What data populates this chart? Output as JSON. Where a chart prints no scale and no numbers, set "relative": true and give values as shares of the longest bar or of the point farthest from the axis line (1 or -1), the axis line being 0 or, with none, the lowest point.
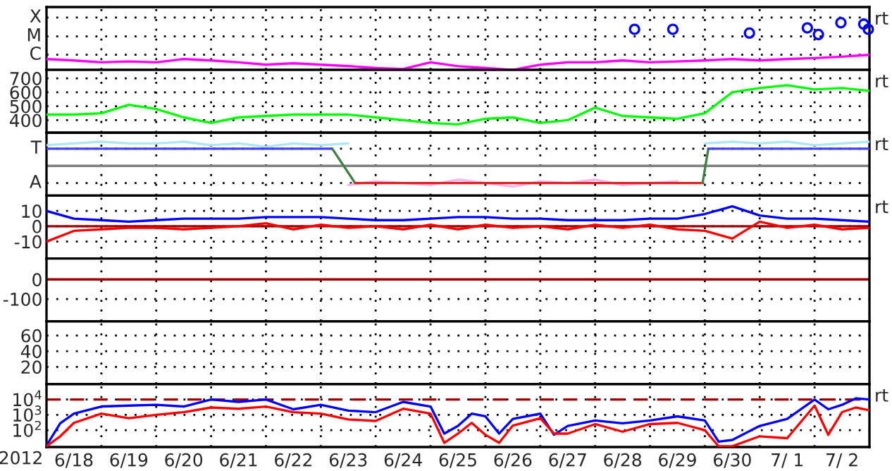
{
  "chart_data": [
    {
      "type": "line",
      "relative": true,
      "grid": "x",
      "tick_labels": false,
      "xlim": [
        "2012-06-18T00:00",
        "2012-07-03T00:00"
      ],
      "xticks": [
        {
          "value": "2012-06-19T00:00",
          "label": null
        },
        {
          "value": "2012-06-20T00:00",
          "label": null
        },
        {
          "value": "2012-06-21T00:00",
          "label": null
        },
        {
          "value": "2012-06-22T00:00",
          "label": null
        },
        {
          "value": "2012-06-23T00:00",
          "label": null
        },
        {
          "value": "2012-06-24T00:00",
          "label": null
        },
        {
          "value": "2012-06-25T00:00",
          "label": null
        },
        {
          "value": "2012-06-26T00:00",
          "label": null
        },
        {
          "value": "2012-06-27T00:00",
          "label": null
        },
        {
          "value": "2012-06-28T00:00",
          "label": null
        },
        {
          "value": "2012-06-29T00:00",
          "label": null
        },
        {
          "value": "2012-06-30T00:00",
          "label": null
        },
        {
          "value": "2012-07-01T00:00",
          "label": null
        },
        {
          "value": "2012-07-02T00:00",
          "label": null
        }
      ],
      "ref_lines": [
        {
          "axis": "y",
          "value": 1.11,
          "label": "X",
          "color": "#000000",
          "line_style": "dotted"
        },
        {
          "axis": "y",
          "value": 0.71,
          "label": "M",
          "color": "#000000",
          "line_style": "dotted"
        },
        {
          "axis": "y",
          "value": 0.32,
          "label": "C",
          "color": "#000000",
          "line_style": "dotted"
        }
      ],
      "annotations": [
        "rt"
      ],
      "x": [
        "2012-06-18T00:00",
        "2012-06-18T12:00",
        "2012-06-19T00:00",
        "2012-06-19T12:00",
        "2012-06-20T00:00",
        "2012-06-20T12:00",
        "2012-06-21T00:00",
        "2012-06-21T12:00",
        "2012-06-22T00:00",
        "2012-06-22T12:00",
        "2012-06-23T00:00",
        "2012-06-23T12:00",
        "2012-06-24T00:00",
        "2012-06-24T12:00",
        "2012-06-25T00:00",
        "2012-06-25T12:00",
        "2012-06-26T00:00",
        "2012-06-26T12:00",
        "2012-06-27T00:00",
        "2012-06-27T12:00",
        "2012-06-28T00:00",
        "2012-06-28T12:00",
        "2012-06-29T00:00",
        "2012-06-29T12:00",
        "2012-06-30T00:00",
        "2012-06-30T12:00",
        "2012-07-01T00:00",
        "2012-07-01T12:00",
        "2012-07-02T00:00",
        "2012-07-02T12:00",
        "2012-07-03T00:00"
      ],
      "series": [
        {
          "color": "#ff00ff",
          "values": [
            0.23,
            0.2,
            0.16,
            0.18,
            0.16,
            0.23,
            0.2,
            0.16,
            0.11,
            0.14,
            0.11,
            0.08,
            0.04,
            0.02,
            0.16,
            0.08,
            0.04,
            0,
            0.11,
            0.16,
            0.16,
            0.2,
            0.16,
            0.18,
            0.2,
            0.23,
            0.2,
            0.23,
            0.25,
            0.28,
            0.32
          ]
        },
        {
          "type": "scatter",
          "marker": "circle",
          "color": "#0000ff",
          "x": [
            "2012-06-28T17:15",
            "2012-06-29T10:00",
            "2012-06-30T19:30",
            "2012-07-01T20:50",
            "2012-07-02T01:40",
            "2012-07-02T11:30",
            "2012-07-02T21:30",
            "2012-07-02T23:30"
          ],
          "values": [
            0.86,
            0.86,
            0.78,
            0.89,
            0.75,
            1,
            0.97,
            0.86
          ]
        }
      ]
    },
    {
      "type": "line",
      "grid": true,
      "tick_labels": "y",
      "xlim": [
        "2012-06-18T00:00",
        "2012-07-03T00:00"
      ],
      "xticks": [
        {
          "value": "2012-06-19T00:00",
          "label": null
        },
        {
          "value": "2012-06-20T00:00",
          "label": null
        },
        {
          "value": "2012-06-21T00:00",
          "label": null
        },
        {
          "value": "2012-06-22T00:00",
          "label": null
        },
        {
          "value": "2012-06-23T00:00",
          "label": null
        },
        {
          "value": "2012-06-24T00:00",
          "label": null
        },
        {
          "value": "2012-06-25T00:00",
          "label": null
        },
        {
          "value": "2012-06-26T00:00",
          "label": null
        },
        {
          "value": "2012-06-27T00:00",
          "label": null
        },
        {
          "value": "2012-06-28T00:00",
          "label": null
        },
        {
          "value": "2012-06-29T00:00",
          "label": null
        },
        {
          "value": "2012-06-30T00:00",
          "label": null
        },
        {
          "value": "2012-07-01T00:00",
          "label": null
        },
        {
          "value": "2012-07-02T00:00",
          "label": null
        }
      ],
      "ylim": [
        310,
        760
      ],
      "yticks": [
        400,
        500,
        600,
        700
      ],
      "annotations": [
        "rt"
      ],
      "x": [
        "2012-06-18T00:00",
        "2012-06-18T12:00",
        "2012-06-19T00:00",
        "2012-06-19T12:00",
        "2012-06-20T00:00",
        "2012-06-20T12:00",
        "2012-06-21T00:00",
        "2012-06-21T12:00",
        "2012-06-22T00:00",
        "2012-06-22T12:00",
        "2012-06-23T00:00",
        "2012-06-23T12:00",
        "2012-06-24T00:00",
        "2012-06-24T12:00",
        "2012-06-25T00:00",
        "2012-06-25T12:00",
        "2012-06-26T00:00",
        "2012-06-26T12:00",
        "2012-06-27T00:00",
        "2012-06-27T12:00",
        "2012-06-28T00:00",
        "2012-06-28T12:00",
        "2012-06-29T00:00",
        "2012-06-29T12:00",
        "2012-06-30T00:00",
        "2012-06-30T12:00",
        "2012-07-01T00:00",
        "2012-07-01T12:00",
        "2012-07-02T00:00",
        "2012-07-02T12:00",
        "2012-07-03T00:00"
      ],
      "series": [
        {
          "color": "#00ff00",
          "values": [
            440,
            440,
            450,
            510,
            480,
            420,
            380,
            420,
            430,
            440,
            440,
            440,
            420,
            400,
            380,
            370,
            410,
            420,
            380,
            400,
            490,
            430,
            420,
            410,
            450,
            600,
            630,
            650,
            620,
            630,
            610
          ]
        }
      ]
    },
    {
      "type": "line",
      "relative": true,
      "grid": "x",
      "tick_labels": false,
      "xlim": [
        "2012-06-18T00:00",
        "2012-07-03T00:00"
      ],
      "xticks": [
        {
          "value": "2012-06-19T00:00",
          "label": null
        },
        {
          "value": "2012-06-20T00:00",
          "label": null
        },
        {
          "value": "2012-06-21T00:00",
          "label": null
        },
        {
          "value": "2012-06-22T00:00",
          "label": null
        },
        {
          "value": "2012-06-23T00:00",
          "label": null
        },
        {
          "value": "2012-06-24T00:00",
          "label": null
        },
        {
          "value": "2012-06-25T00:00",
          "label": null
        },
        {
          "value": "2012-06-26T00:00",
          "label": null
        },
        {
          "value": "2012-06-27T00:00",
          "label": null
        },
        {
          "value": "2012-06-28T00:00",
          "label": null
        },
        {
          "value": "2012-06-29T00:00",
          "label": null
        },
        {
          "value": "2012-06-30T00:00",
          "label": null
        },
        {
          "value": "2012-07-01T00:00",
          "label": null
        },
        {
          "value": "2012-07-02T00:00",
          "label": null
        }
      ],
      "ref_lines": [
        {
          "axis": "y",
          "value": 0,
          "color": "#808080"
        },
        {
          "axis": "y",
          "value": 0.71,
          "label": "T",
          "color": "#000000",
          "line_style": "dotted"
        },
        {
          "axis": "y",
          "value": -0.71,
          "label": "A",
          "color": "#000000",
          "line_style": "dotted"
        }
      ],
      "annotations": [
        "rt"
      ],
      "x": [
        "2012-06-18T00:00",
        "2012-06-18T12:00",
        "2012-06-19T00:00",
        "2012-06-19T12:00",
        "2012-06-20T00:00",
        "2012-06-20T12:00",
        "2012-06-21T00:00",
        "2012-06-21T12:00",
        "2012-06-22T00:00",
        "2012-06-22T12:00",
        "2012-06-23T00:00",
        "2012-06-23T12:00",
        "2012-06-24T00:00",
        "2012-06-24T12:00",
        "2012-06-25T00:00",
        "2012-06-25T12:00",
        "2012-06-26T00:00",
        "2012-06-26T12:00",
        "2012-06-27T00:00",
        "2012-06-27T12:00",
        "2012-06-28T00:00",
        "2012-06-28T12:00",
        "2012-06-29T00:00",
        "2012-06-29T12:00",
        "2012-06-30T00:00",
        "2012-06-30T12:00",
        "2012-07-01T00:00",
        "2012-07-01T12:00",
        "2012-07-02T00:00",
        "2012-07-02T12:00",
        "2012-07-03T00:00"
      ],
      "series": [
        {
          "color": "#aee6f5",
          "values": [
            0.86,
            0.93,
            1,
            0.93,
            0.93,
            1,
            0.86,
            0.93,
            0.79,
            0.93,
            0.86,
            0.93,
            null,
            null,
            null,
            null,
            null,
            null,
            null,
            null,
            null,
            null,
            null,
            null,
            0.93,
            1,
            0.93,
            1,
            0.86,
            0.93,
            1
          ]
        },
        {
          "color": "#f5b5ee",
          "values": [
            null,
            null,
            null,
            null,
            null,
            null,
            null,
            null,
            null,
            null,
            null,
            -0.79,
            -0.64,
            -0.71,
            -0.79,
            -0.57,
            -0.71,
            -0.86,
            -0.64,
            -0.71,
            -0.57,
            -0.79,
            -0.71,
            -0.64,
            null,
            null,
            null,
            null,
            null,
            null,
            null
          ]
        },
        {
          "color": "#4040ff",
          "x": [
            "2012-06-18T00:00",
            "2012-06-23T05:00"
          ],
          "values": [
            0.71,
            0.71
          ]
        },
        {
          "color": "#408040",
          "x": [
            "2012-06-23T05:00",
            "2012-06-23T15:00"
          ],
          "values": [
            0.71,
            -0.71
          ]
        },
        {
          "color": "#e02020",
          "x": [
            "2012-06-23T15:00",
            "2012-06-29T23:00"
          ],
          "values": [
            -0.71,
            -0.71
          ]
        },
        {
          "color": "#408040",
          "x": [
            "2012-06-29T23:00",
            "2012-06-30T01:30"
          ],
          "values": [
            -0.71,
            0.71
          ]
        },
        {
          "color": "#4040ff",
          "x": [
            "2012-06-30T01:30",
            "2012-07-03T00:00"
          ],
          "values": [
            0.71,
            0.71
          ]
        }
      ]
    },
    {
      "type": "line",
      "grid": true,
      "tick_labels": "y",
      "xlim": [
        "2012-06-18T00:00",
        "2012-07-03T00:00"
      ],
      "xticks": [
        {
          "value": "2012-06-19T00:00",
          "label": null
        },
        {
          "value": "2012-06-20T00:00",
          "label": null
        },
        {
          "value": "2012-06-21T00:00",
          "label": null
        },
        {
          "value": "2012-06-22T00:00",
          "label": null
        },
        {
          "value": "2012-06-23T00:00",
          "label": null
        },
        {
          "value": "2012-06-24T00:00",
          "label": null
        },
        {
          "value": "2012-06-25T00:00",
          "label": null
        },
        {
          "value": "2012-06-26T00:00",
          "label": null
        },
        {
          "value": "2012-06-27T00:00",
          "label": null
        },
        {
          "value": "2012-06-28T00:00",
          "label": null
        },
        {
          "value": "2012-06-29T00:00",
          "label": null
        },
        {
          "value": "2012-06-30T00:00",
          "label": null
        },
        {
          "value": "2012-07-01T00:00",
          "label": null
        },
        {
          "value": "2012-07-02T00:00",
          "label": null
        }
      ],
      "ylim": [
        -21,
        20
      ],
      "yticks": [
        {
          "value": -10,
          "label": "-10"
        },
        0,
        10
      ],
      "ref_lines": [
        {
          "axis": "y",
          "value": 0,
          "color": "#a00000"
        }
      ],
      "annotations": [
        "rt"
      ],
      "x": [
        "2012-06-18T00:00",
        "2012-06-18T12:00",
        "2012-06-19T00:00",
        "2012-06-19T12:00",
        "2012-06-20T00:00",
        "2012-06-20T12:00",
        "2012-06-21T00:00",
        "2012-06-21T12:00",
        "2012-06-22T00:00",
        "2012-06-22T12:00",
        "2012-06-23T00:00",
        "2012-06-23T12:00",
        "2012-06-24T00:00",
        "2012-06-24T12:00",
        "2012-06-25T00:00",
        "2012-06-25T12:00",
        "2012-06-26T00:00",
        "2012-06-26T12:00",
        "2012-06-27T00:00",
        "2012-06-27T12:00",
        "2012-06-28T00:00",
        "2012-06-28T12:00",
        "2012-06-29T00:00",
        "2012-06-29T12:00",
        "2012-06-30T00:00",
        "2012-06-30T12:00",
        "2012-07-01T00:00",
        "2012-07-01T12:00",
        "2012-07-02T00:00",
        "2012-07-02T12:00",
        "2012-07-03T00:00"
      ],
      "series": [
        {
          "color": "#0000ff",
          "values": [
            10,
            5,
            4,
            3,
            4,
            5,
            5,
            5,
            6,
            6,
            6,
            5,
            4,
            4,
            5,
            6,
            6,
            5,
            5,
            4,
            4,
            4,
            5,
            5,
            8,
            13,
            7,
            5,
            5,
            4,
            3
          ]
        },
        {
          "color": "#ff0000",
          "values": [
            -10,
            -3,
            -2,
            -1,
            -1,
            -2,
            -1,
            0,
            2,
            -2,
            1,
            -1,
            0,
            -2,
            1,
            -2,
            1,
            -1,
            0,
            -2,
            1,
            -1,
            1,
            -2,
            -3,
            -8,
            3,
            -1,
            1,
            -2,
            -1
          ]
        }
      ]
    },
    {
      "type": "line",
      "grid": true,
      "tick_labels": "y",
      "xlim": [
        "2012-06-18T00:00",
        "2012-07-03T00:00"
      ],
      "xticks": [
        {
          "value": "2012-06-19T00:00",
          "label": null
        },
        {
          "value": "2012-06-20T00:00",
          "label": null
        },
        {
          "value": "2012-06-21T00:00",
          "label": null
        },
        {
          "value": "2012-06-22T00:00",
          "label": null
        },
        {
          "value": "2012-06-23T00:00",
          "label": null
        },
        {
          "value": "2012-06-24T00:00",
          "label": null
        },
        {
          "value": "2012-06-25T00:00",
          "label": null
        },
        {
          "value": "2012-06-26T00:00",
          "label": null
        },
        {
          "value": "2012-06-27T00:00",
          "label": null
        },
        {
          "value": "2012-06-28T00:00",
          "label": null
        },
        {
          "value": "2012-06-29T00:00",
          "label": null
        },
        {
          "value": "2012-06-30T00:00",
          "label": null
        },
        {
          "value": "2012-07-01T00:00",
          "label": null
        },
        {
          "value": "2012-07-02T00:00",
          "label": null
        }
      ],
      "ylim": [
        -214,
        107
      ],
      "yticks": [
        {
          "value": -100,
          "label": "-100"
        },
        0
      ],
      "ref_lines": [
        {
          "axis": "y",
          "value": 0,
          "color": "#a00000"
        }
      ]
    },
    {
      "type": "line",
      "grid": true,
      "tick_labels": "y",
      "xlim": [
        "2012-06-18T00:00",
        "2012-07-03T00:00"
      ],
      "xticks": [
        {
          "value": "2012-06-19T00:00",
          "label": null
        },
        {
          "value": "2012-06-20T00:00",
          "label": null
        },
        {
          "value": "2012-06-21T00:00",
          "label": null
        },
        {
          "value": "2012-06-22T00:00",
          "label": null
        },
        {
          "value": "2012-06-23T00:00",
          "label": null
        },
        {
          "value": "2012-06-24T00:00",
          "label": null
        },
        {
          "value": "2012-06-25T00:00",
          "label": null
        },
        {
          "value": "2012-06-26T00:00",
          "label": null
        },
        {
          "value": "2012-06-27T00:00",
          "label": null
        },
        {
          "value": "2012-06-28T00:00",
          "label": null
        },
        {
          "value": "2012-06-29T00:00",
          "label": null
        },
        {
          "value": "2012-06-30T00:00",
          "label": null
        },
        {
          "value": "2012-07-01T00:00",
          "label": null
        },
        {
          "value": "2012-07-02T00:00",
          "label": null
        }
      ],
      "ylim": [
        -2,
        78
      ],
      "yticks": [
        20,
        40,
        60
      ]
    },
    {
      "type": "line",
      "log": "y",
      "grid": true,
      "xlim": [
        "2012-06-18T00:00",
        "2012-07-03T00:00"
      ],
      "xticks": [
        {
          "value": "2012-06-18T12:00",
          "label": "6/18"
        },
        {
          "value": "2012-06-19T12:00",
          "label": "6/19"
        },
        {
          "value": "2012-06-20T12:00",
          "label": "6/20"
        },
        {
          "value": "2012-06-21T12:00",
          "label": "6/21"
        },
        {
          "value": "2012-06-22T12:00",
          "label": "6/22"
        },
        {
          "value": "2012-06-23T12:00",
          "label": "6/23"
        },
        {
          "value": "2012-06-24T12:00",
          "label": "6/24"
        },
        {
          "value": "2012-06-25T12:00",
          "label": "6/25"
        },
        {
          "value": "2012-06-26T12:00",
          "label": "6/26"
        },
        {
          "value": "2012-06-27T12:00",
          "label": "6/27"
        },
        {
          "value": "2012-06-28T12:00",
          "label": "6/28"
        },
        {
          "value": "2012-06-29T12:00",
          "label": "6/29"
        },
        {
          "value": "2012-06-30T12:00",
          "label": "6/30"
        },
        {
          "value": "2012-07-01T12:00",
          "label": "7/ 1"
        },
        {
          "value": "2012-07-02T12:00",
          "label": "7/ 2"
        },
        {
          "value": "2012-06-19T00:00",
          "label": null
        },
        {
          "value": "2012-06-20T00:00",
          "label": null
        },
        {
          "value": "2012-06-21T00:00",
          "label": null
        },
        {
          "value": "2012-06-22T00:00",
          "label": null
        },
        {
          "value": "2012-06-23T00:00",
          "label": null
        },
        {
          "value": "2012-06-24T00:00",
          "label": null
        },
        {
          "value": "2012-06-25T00:00",
          "label": null
        },
        {
          "value": "2012-06-26T00:00",
          "label": null
        },
        {
          "value": "2012-06-27T00:00",
          "label": null
        },
        {
          "value": "2012-06-28T00:00",
          "label": null
        },
        {
          "value": "2012-06-29T00:00",
          "label": null
        },
        {
          "value": "2012-06-30T00:00",
          "label": null
        },
        {
          "value": "2012-07-01T00:00",
          "label": null
        },
        {
          "value": "2012-07-02T00:00",
          "label": null
        }
      ],
      "ylim": [
        8,
        100000
      ],
      "yticks": [
        {
          "value": 100,
          "label": "10$^{2}$"
        },
        {
          "value": 1000,
          "label": "10$^{3}$"
        },
        {
          "value": 10000,
          "label": "10$^{4}$"
        }
      ],
      "ref_lines": [
        {
          "axis": "y",
          "value": 10000,
          "color": "#a00000",
          "line_style": "dashed"
        }
      ],
      "xlabel": "2012",
      "annotations": [
        "rt"
      ],
      "x": [
        "2012-06-18T00:00",
        "2012-06-18T06:00",
        "2012-06-18T12:00",
        "2012-06-19T00:00",
        "2012-06-19T12:00",
        "2012-06-20T00:00",
        "2012-06-20T12:00",
        "2012-06-21T00:00",
        "2012-06-21T12:00",
        "2012-06-22T00:00",
        "2012-06-22T12:00",
        "2012-06-23T00:00",
        "2012-06-23T12:00",
        "2012-06-24T00:00",
        "2012-06-24T12:00",
        "2012-06-25T00:00",
        "2012-06-25T06:00",
        "2012-06-25T12:00",
        "2012-06-25T18:00",
        "2012-06-26T00:00",
        "2012-06-26T06:00",
        "2012-06-26T12:00",
        "2012-06-27T00:00",
        "2012-06-27T06:00",
        "2012-06-27T12:00",
        "2012-06-28T00:00",
        "2012-06-28T12:00",
        "2012-06-29T00:00",
        "2012-06-29T12:00",
        "2012-06-30T00:00",
        "2012-06-30T06:00",
        "2012-06-30T12:00",
        "2012-07-01T00:00",
        "2012-07-01T12:00",
        "2012-07-02T00:00",
        "2012-07-02T06:00",
        "2012-07-02T12:00",
        "2012-07-02T18:00",
        "2012-07-03T00:00"
      ],
      "series": [
        {
          "color": "#0000ff",
          "values": [
            10,
            280,
            1200,
            3500,
            4000,
            4500,
            3500,
            10000,
            7000,
            10000,
            2300,
            4500,
            1900,
            1500,
            7000,
            3500,
            60,
            190,
            1200,
            800,
            60,
            550,
            1200,
            50,
            190,
            430,
            280,
            430,
            800,
            430,
            18,
            23,
            190,
            550,
            10000,
            2300,
            4500,
            12000,
            10000
          ]
        },
        {
          "color": "#ff0000",
          "values": [
            9,
            40,
            300,
            1200,
            600,
            1000,
            1500,
            3000,
            2500,
            3500,
            1500,
            1200,
            500,
            400,
            2500,
            1200,
            15,
            60,
            300,
            50,
            15,
            200,
            600,
            60,
            60,
            250,
            80,
            250,
            300,
            100,
            9,
            9,
            40,
            30,
            4000,
            50,
            1500,
            3000,
            2000
          ]
        }
      ]
    }
  ]
}
